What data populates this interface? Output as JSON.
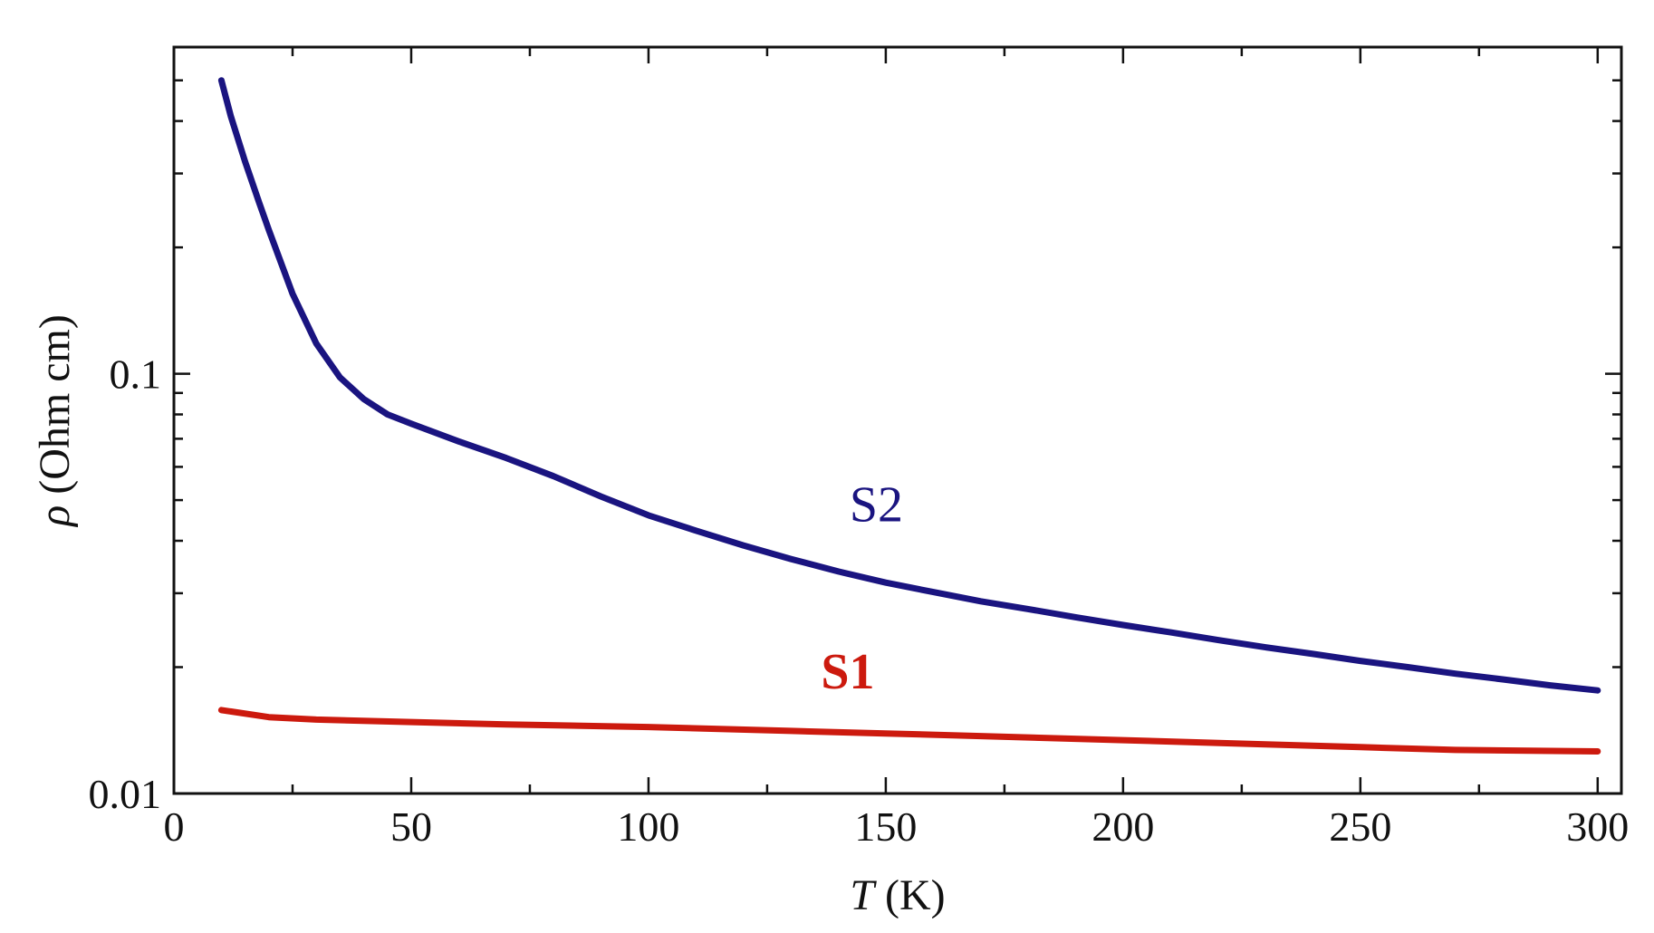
{
  "chart_data": {
    "type": "line",
    "xlabel_symbol": "T",
    "xlabel_unit": " (K)",
    "ylabel_symbol": "ρ",
    "ylabel_unit": " (Ohm cm)",
    "x_scale": "linear",
    "y_scale": "log",
    "xlim": [
      0,
      305
    ],
    "ylim": [
      0.01,
      0.6
    ],
    "x_ticks": [
      0,
      50,
      100,
      150,
      200,
      250,
      300
    ],
    "x_tick_labels": [
      "0",
      "50",
      "100",
      "150",
      "200",
      "250",
      "300"
    ],
    "y_tick_labels": [
      {
        "value": 0.01,
        "label": "0.01"
      },
      {
        "value": 0.1,
        "label": "0.1"
      }
    ],
    "grid": false,
    "legend": "none",
    "series": [
      {
        "name": "S2",
        "color": "#1a1480",
        "label_anchor": {
          "x": 148,
          "y": 0.0445
        },
        "x": [
          10,
          12,
          15,
          18,
          20,
          25,
          30,
          35,
          40,
          45,
          50,
          60,
          70,
          80,
          90,
          100,
          110,
          120,
          130,
          140,
          150,
          160,
          170,
          180,
          190,
          200,
          210,
          220,
          230,
          240,
          250,
          260,
          270,
          280,
          290,
          300
        ],
        "y": [
          0.5,
          0.41,
          0.32,
          0.255,
          0.22,
          0.155,
          0.118,
          0.098,
          0.087,
          0.08,
          0.076,
          0.069,
          0.063,
          0.057,
          0.051,
          0.046,
          0.0423,
          0.039,
          0.0362,
          0.0338,
          0.0318,
          0.0302,
          0.0287,
          0.0275,
          0.0263,
          0.0252,
          0.0242,
          0.0232,
          0.0223,
          0.0215,
          0.0207,
          0.02,
          0.0193,
          0.0187,
          0.0181,
          0.0176
        ]
      },
      {
        "name": "S1",
        "color": "#cc1a0e",
        "label_anchor": {
          "x": 142,
          "y": 0.0178
        },
        "x": [
          10,
          20,
          30,
          50,
          70,
          100,
          130,
          150,
          170,
          200,
          230,
          250,
          270,
          300
        ],
        "y": [
          0.0158,
          0.0152,
          0.015,
          0.0148,
          0.0146,
          0.0144,
          0.0141,
          0.0139,
          0.0137,
          0.0134,
          0.0131,
          0.0129,
          0.0127,
          0.0126
        ]
      }
    ]
  }
}
